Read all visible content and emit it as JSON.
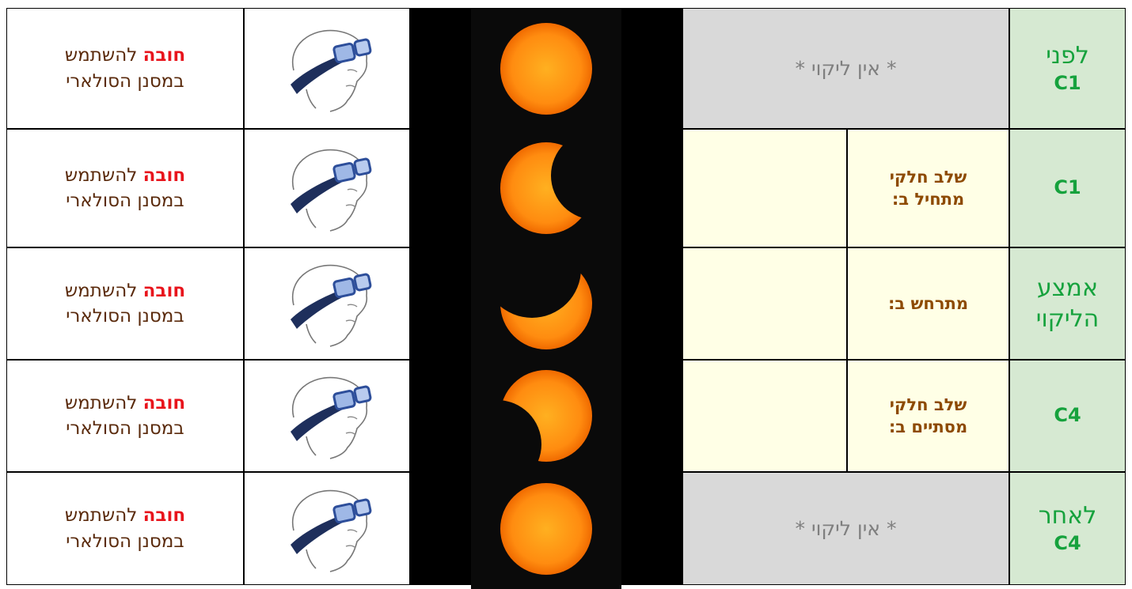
{
  "table": {
    "rows": [
      {
        "phase_label": "לפני",
        "phase_code": "C1",
        "status": "* אין ליקוי *",
        "filter_warning": "חובה",
        "filter_text": "להשתמש במסנן הסולארי"
      },
      {
        "phase_code": "C1",
        "status": "שלב חלקי מתחיל ב:",
        "filter_warning": "חובה",
        "filter_text": "להשתמש במסנן הסולארי"
      },
      {
        "phase_label": "אמצע הליקוי",
        "status": "מתרחש ב:",
        "filter_warning": "חובה",
        "filter_text": "להשתמש במסנן הסולארי"
      },
      {
        "phase_code": "C4",
        "status": "שלב חלקי מסתיים ב:",
        "filter_warning": "חובה",
        "filter_text": "להשתמש במסנן הסולארי"
      },
      {
        "phase_label": "לאחר",
        "phase_code": "C4",
        "status": "* אין ליקוי *",
        "filter_warning": "חובה",
        "filter_text": "להשתמש במסנן הסולארי"
      }
    ]
  }
}
